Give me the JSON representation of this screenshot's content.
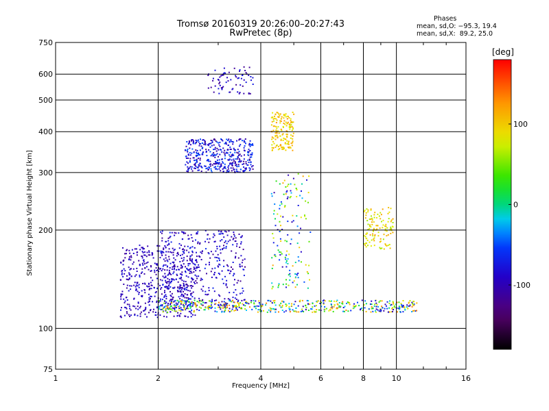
{
  "chart_data": {
    "type": "scatter",
    "title": "Tromsø 20160319 20:26:00–20:27:43",
    "subtitle": "RwPretec (8p)",
    "xlabel": "Frequency [MHz]",
    "ylabel": "Stationary phase Virtual Height [km]",
    "xscale": "log",
    "yscale": "log",
    "xlim": [
      1,
      16
    ],
    "ylim": [
      75,
      750
    ],
    "x_ticks": [
      1,
      2,
      4,
      6,
      8,
      10,
      16
    ],
    "y_ticks": [
      75,
      100,
      200,
      300,
      400,
      500,
      600,
      750
    ],
    "x_grid": [
      2,
      4,
      6,
      8,
      10
    ],
    "y_grid": [
      100,
      200,
      300,
      400,
      500,
      600
    ],
    "info": {
      "heading": "Phases",
      "line1": "mean, sd,O: −95.3, 19.4",
      "line2": "mean, sd,X:  89.2, 25.0"
    },
    "colorbar": {
      "label": "[deg]",
      "range": [
        -180,
        180
      ],
      "ticks": [
        100,
        0,
        -100
      ]
    },
    "series": [
      {
        "x_range": [
          1.55,
          2.6
        ],
        "y_range": [
          108,
          180
        ],
        "phase_range": [
          -115,
          -75
        ],
        "count": 520
      },
      {
        "x_range": [
          2.0,
          3.6
        ],
        "y_range": [
          115,
          200
        ],
        "phase_range": [
          -120,
          -60
        ],
        "count": 380
      },
      {
        "x_range": [
          2.4,
          3.8
        ],
        "y_range": [
          300,
          380
        ],
        "phase_range": [
          -120,
          -40
        ],
        "count": 420
      },
      {
        "x_range": [
          2.8,
          3.8
        ],
        "y_range": [
          520,
          640
        ],
        "phase_range": [
          -120,
          -70
        ],
        "count": 70
      },
      {
        "x_range": [
          4.3,
          5.0
        ],
        "y_range": [
          350,
          460
        ],
        "phase_range": [
          70,
          130
        ],
        "count": 160
      },
      {
        "x_range": [
          2.0,
          11.5
        ],
        "y_range": [
          112,
          122
        ],
        "phase_range": [
          -110,
          140
        ],
        "count": 520
      },
      {
        "x_range": [
          8.0,
          9.8
        ],
        "y_range": [
          175,
          235
        ],
        "phase_range": [
          60,
          120
        ],
        "count": 120
      },
      {
        "x_range": [
          4.3,
          5.6
        ],
        "y_range": [
          130,
          300
        ],
        "phase_range": [
          -110,
          120
        ],
        "count": 150
      }
    ]
  }
}
